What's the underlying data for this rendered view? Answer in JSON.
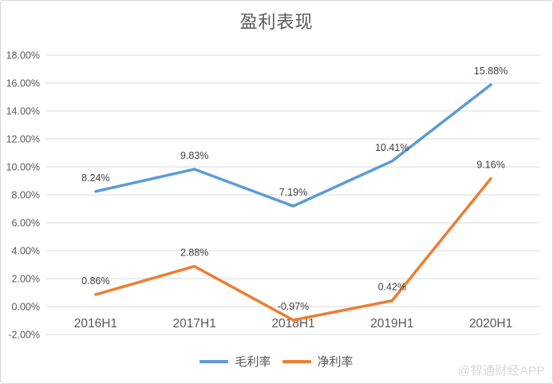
{
  "chart_data": {
    "type": "line",
    "title": "盈利表现",
    "categories": [
      "2016H1",
      "2017H1",
      "2018H1",
      "2019H1",
      "2020H1"
    ],
    "series": [
      {
        "name": "毛利率",
        "color": "#5B9BD5",
        "values": [
          8.24,
          9.83,
          7.19,
          10.41,
          15.88
        ],
        "labels": [
          "8.24%",
          "9.83%",
          "7.19%",
          "10.41%",
          "15.88%"
        ]
      },
      {
        "name": "净利率",
        "color": "#ED7D31",
        "values": [
          0.86,
          2.88,
          -0.97,
          0.42,
          9.16
        ],
        "labels": [
          "0.86%",
          "2.88%",
          "-0.97%",
          "0.42%",
          "9.16%"
        ]
      }
    ],
    "ylim": [
      -2,
      18
    ],
    "ytick_step": 2,
    "yticks": [
      "18.00%",
      "16.00%",
      "14.00%",
      "12.00%",
      "10.00%",
      "8.00%",
      "6.00%",
      "4.00%",
      "2.00%",
      "0.00%",
      "-2.00%"
    ],
    "grid": true,
    "legend_position": "bottom",
    "colors": {
      "gridline": "#d9d9d9",
      "axis_text": "#595959",
      "data_label_text": "#404040",
      "title_text": "#595959"
    }
  },
  "watermark": {
    "text": "@智通财经APP"
  }
}
